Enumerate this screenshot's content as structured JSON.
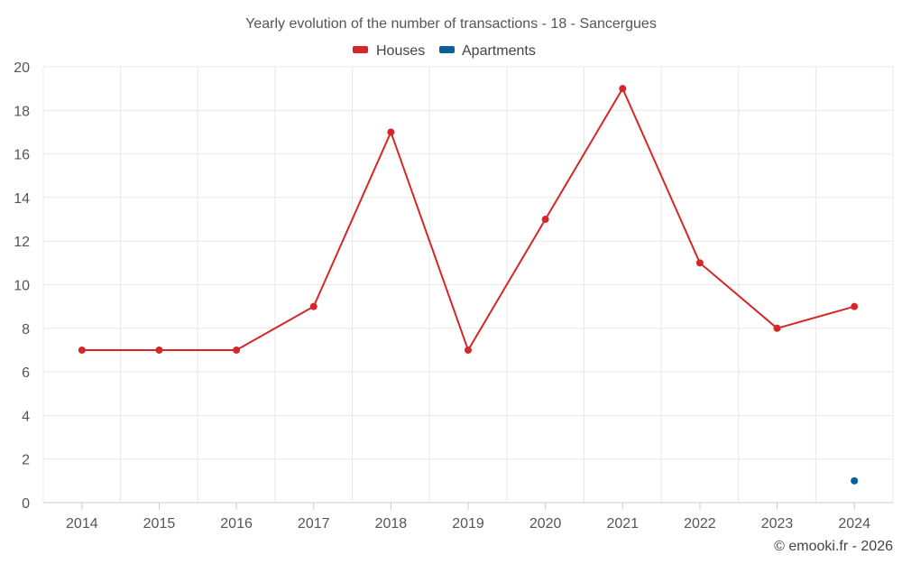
{
  "chart_data": {
    "type": "line",
    "title": "Yearly evolution of the number of transactions - 18 - Sancergues",
    "categories": [
      "2014",
      "2015",
      "2016",
      "2017",
      "2018",
      "2019",
      "2020",
      "2021",
      "2022",
      "2023",
      "2024"
    ],
    "ylim": [
      0,
      20
    ],
    "yticks": [
      0,
      2,
      4,
      6,
      8,
      10,
      12,
      14,
      16,
      18,
      20
    ],
    "grid": true,
    "legend_position": "top-center",
    "series": [
      {
        "name": "Houses",
        "color": "#d62728",
        "values": [
          7,
          7,
          7,
          9,
          17,
          7,
          13,
          19,
          11,
          8,
          9
        ]
      },
      {
        "name": "Apartments",
        "color": "#08619a",
        "values": [
          null,
          null,
          null,
          null,
          null,
          null,
          null,
          null,
          null,
          null,
          1
        ]
      }
    ],
    "credit": "© emooki.fr - 2026"
  }
}
